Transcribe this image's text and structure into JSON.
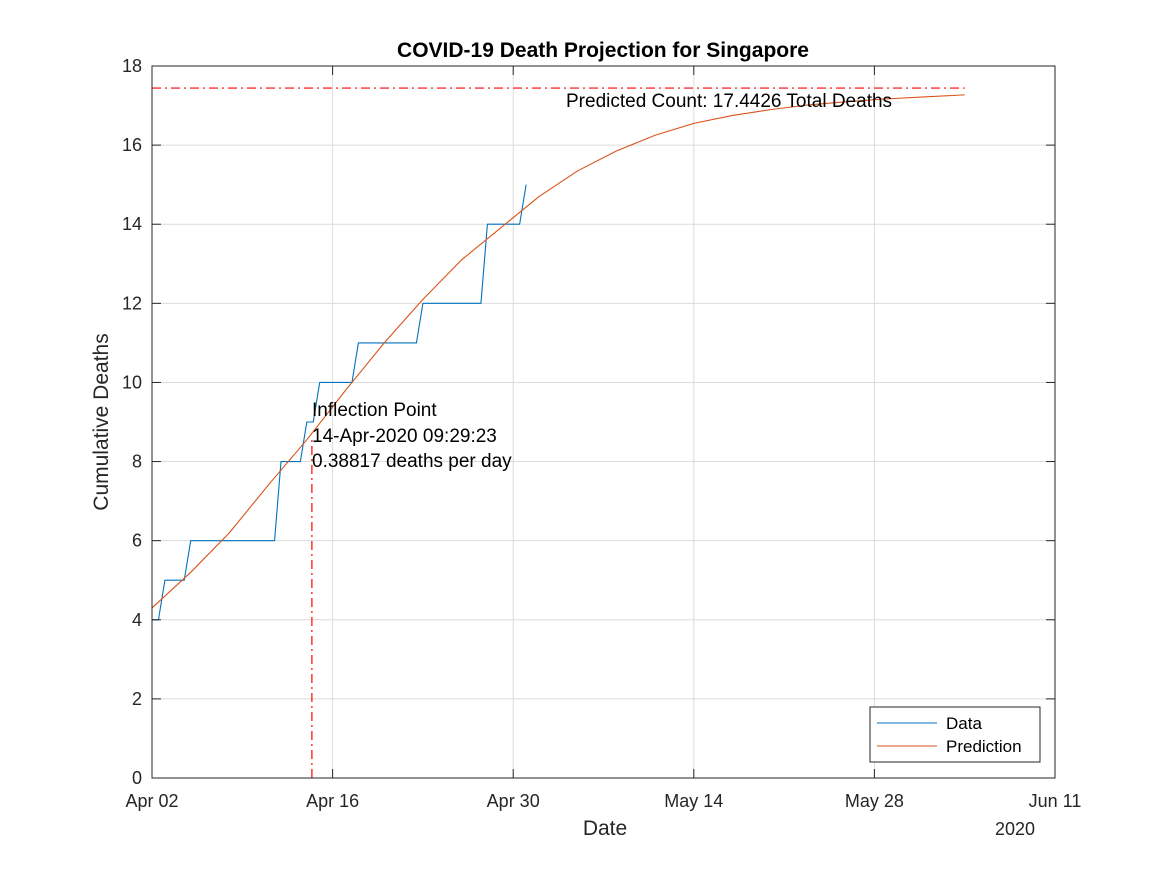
{
  "chart_data": {
    "type": "line",
    "title": "COVID-19 Death Projection for Singapore",
    "xlabel": "Date",
    "ylabel": "Cumulative Deaths",
    "x_axis_year_label": "2020",
    "x_ticks": [
      "Apr 02",
      "Apr 16",
      "Apr 30",
      "May 14",
      "May 28",
      "Jun 11"
    ],
    "y_ticks": [
      "0",
      "2",
      "4",
      "6",
      "8",
      "10",
      "12",
      "14",
      "16",
      "18"
    ],
    "xlim": [
      "2020-04-02",
      "2020-06-11"
    ],
    "ylim": [
      0,
      18
    ],
    "grid": true,
    "legend_placement": "bottom-right",
    "series": [
      {
        "name": "Data",
        "color": "#0072BD",
        "x": [
          "2020-04-02",
          "2020-04-03",
          "2020-04-04",
          "2020-04-05",
          "2020-04-06",
          "2020-04-07",
          "2020-04-08",
          "2020-04-09",
          "2020-04-10",
          "2020-04-11",
          "2020-04-12",
          "2020-04-13",
          "2020-04-14",
          "2020-04-15",
          "2020-04-16",
          "2020-04-17",
          "2020-04-18",
          "2020-04-19",
          "2020-04-20",
          "2020-04-21",
          "2020-04-22",
          "2020-04-23",
          "2020-04-24",
          "2020-04-25",
          "2020-04-26",
          "2020-04-27",
          "2020-04-28",
          "2020-04-29",
          "2020-04-30",
          "2020-05-01"
        ],
        "y": [
          4,
          5,
          5,
          6,
          6,
          6,
          6,
          6,
          6,
          6,
          8,
          8,
          9,
          10,
          10,
          10,
          11,
          11,
          11,
          11,
          11,
          12,
          12,
          12,
          12,
          12,
          14,
          14,
          14,
          15
        ]
      },
      {
        "name": "Prediction",
        "color": "#D95319",
        "x": [
          "2020-04-02",
          "2020-04-05",
          "2020-04-08",
          "2020-04-11",
          "2020-04-14",
          "2020-04-17",
          "2020-04-20",
          "2020-04-23",
          "2020-04-26",
          "2020-04-29",
          "2020-05-02",
          "2020-05-05",
          "2020-05-08",
          "2020-05-11",
          "2020-05-14",
          "2020-05-17",
          "2020-05-20",
          "2020-05-23",
          "2020-05-26",
          "2020-05-29",
          "2020-06-01",
          "2020-06-04"
        ],
        "y": [
          4.3,
          5.2,
          6.2,
          7.4,
          8.55,
          9.8,
          11.0,
          12.1,
          13.1,
          13.9,
          14.7,
          15.35,
          15.85,
          16.25,
          16.55,
          16.75,
          16.9,
          17.02,
          17.1,
          17.17,
          17.22,
          17.27
        ]
      }
    ],
    "reference_lines": [
      {
        "orientation": "horizontal",
        "y": 17.4426,
        "x_end": "2020-06-04",
        "color": "#FF0000",
        "style": "dash-dot"
      },
      {
        "orientation": "vertical",
        "x": "2020-04-14T09:29:23",
        "y_end": 8.55,
        "color": "#FF0000",
        "style": "dash-dot"
      }
    ],
    "annotations": {
      "predicted_count": "Predicted Count: 17.4426 Total Deaths",
      "inflection_title": "Inflection Point",
      "inflection_date": "14-Apr-2020 09:29:23",
      "inflection_rate": "0.38817 deaths per day"
    }
  }
}
